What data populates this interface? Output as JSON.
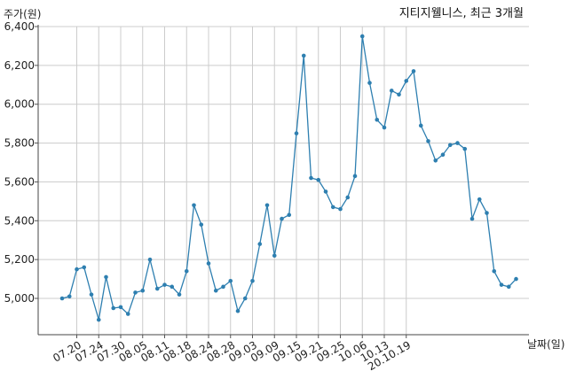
{
  "chart_data": {
    "type": "line",
    "title": "지티지웰니스, 최근 3개월",
    "ylabel": "주가(원)",
    "xlabel": "날짜(일)",
    "ylim": [
      4800,
      6400
    ],
    "yticks": [
      5000,
      5200,
      5400,
      5600,
      5800,
      6000,
      6200,
      6400
    ],
    "ytick_labels": [
      "5,000",
      "5,200",
      "5,400",
      "5,600",
      "5,800",
      "6,000",
      "6,200",
      "6,400"
    ],
    "xtick_labels": [
      "07.20",
      "07.24",
      "07.30",
      "08.05",
      "08.11",
      "08.18",
      "08.24",
      "08.28",
      "09.03",
      "09.09",
      "09.15",
      "09.21",
      "09.25",
      "10.06",
      "10.13",
      "20.10.19"
    ],
    "xtick_positions": [
      2,
      5,
      8,
      11,
      14,
      17,
      20,
      23,
      26,
      29,
      32,
      35,
      38,
      41,
      44,
      47
    ],
    "grid": true,
    "line_color": "#2e7fb0",
    "series": [
      {
        "values": [
          5000,
          5010,
          5150,
          5160,
          5020,
          4890,
          5110,
          4950,
          4955,
          4920,
          5030,
          5040,
          5200,
          5050,
          5070,
          5060,
          5020,
          5140,
          5480,
          5380,
          5180,
          5040,
          5060,
          5090,
          4935,
          5000,
          5090,
          5280,
          5480,
          5220,
          5410,
          5430,
          5850,
          6250,
          5620,
          5610,
          5550,
          5470,
          5460,
          5520,
          5630,
          6350,
          6110,
          5920,
          5880,
          6070,
          6050,
          6120,
          6170,
          5890,
          5810,
          5710,
          5740,
          5790,
          5800,
          5770,
          5410,
          5510,
          5440,
          5140,
          5070,
          5060,
          5100
        ]
      }
    ]
  }
}
